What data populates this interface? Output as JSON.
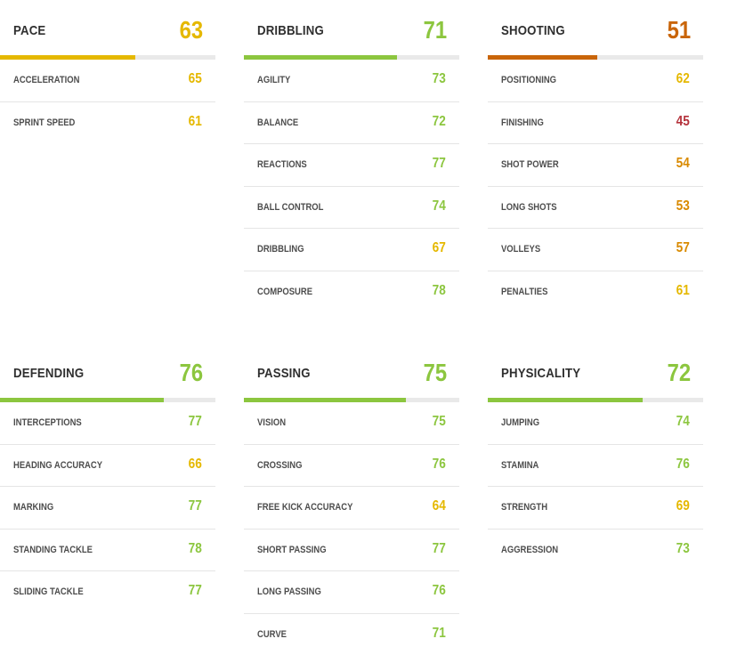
{
  "colors": {
    "green": "#8cc63f",
    "yellow": "#e5b800",
    "orange": "#d98a00",
    "dark_orange": "#c9650a",
    "red": "#b5323c"
  },
  "cards": [
    {
      "title": "PACE",
      "value": "63",
      "rating": 63,
      "color": "#e5b800",
      "stats": [
        {
          "label": "ACCELERATION",
          "value": "65",
          "color": "#e5b800"
        },
        {
          "label": "SPRINT SPEED",
          "value": "61",
          "color": "#e5b800"
        }
      ]
    },
    {
      "title": "DRIBBLING",
      "value": "71",
      "rating": 71,
      "color": "#8cc63f",
      "stats": [
        {
          "label": "AGILITY",
          "value": "73",
          "color": "#8cc63f"
        },
        {
          "label": "BALANCE",
          "value": "72",
          "color": "#8cc63f"
        },
        {
          "label": "REACTIONS",
          "value": "77",
          "color": "#8cc63f"
        },
        {
          "label": "BALL CONTROL",
          "value": "74",
          "color": "#8cc63f"
        },
        {
          "label": "DRIBBLING",
          "value": "67",
          "color": "#e5b800"
        },
        {
          "label": "COMPOSURE",
          "value": "78",
          "color": "#8cc63f"
        }
      ]
    },
    {
      "title": "SHOOTING",
      "value": "51",
      "rating": 51,
      "color": "#c9650a",
      "stats": [
        {
          "label": "POSITIONING",
          "value": "62",
          "color": "#e5b800"
        },
        {
          "label": "FINISHING",
          "value": "45",
          "color": "#b5323c"
        },
        {
          "label": "SHOT POWER",
          "value": "54",
          "color": "#d98a00"
        },
        {
          "label": "LONG SHOTS",
          "value": "53",
          "color": "#d98a00"
        },
        {
          "label": "VOLLEYS",
          "value": "57",
          "color": "#d98a00"
        },
        {
          "label": "PENALTIES",
          "value": "61",
          "color": "#e5b800"
        }
      ]
    },
    {
      "title": "DEFENDING",
      "value": "76",
      "rating": 76,
      "color": "#8cc63f",
      "stats": [
        {
          "label": "INTERCEPTIONS",
          "value": "77",
          "color": "#8cc63f"
        },
        {
          "label": "HEADING ACCURACY",
          "value": "66",
          "color": "#e5b800"
        },
        {
          "label": "MARKING",
          "value": "77",
          "color": "#8cc63f"
        },
        {
          "label": "STANDING TACKLE",
          "value": "78",
          "color": "#8cc63f"
        },
        {
          "label": "SLIDING TACKLE",
          "value": "77",
          "color": "#8cc63f"
        }
      ]
    },
    {
      "title": "PASSING",
      "value": "75",
      "rating": 75,
      "color": "#8cc63f",
      "stats": [
        {
          "label": "VISION",
          "value": "75",
          "color": "#8cc63f"
        },
        {
          "label": "CROSSING",
          "value": "76",
          "color": "#8cc63f"
        },
        {
          "label": "FREE KICK ACCURACY",
          "value": "64",
          "color": "#e5b800"
        },
        {
          "label": "SHORT PASSING",
          "value": "77",
          "color": "#8cc63f"
        },
        {
          "label": "LONG PASSING",
          "value": "76",
          "color": "#8cc63f"
        },
        {
          "label": "CURVE",
          "value": "71",
          "color": "#8cc63f"
        }
      ]
    },
    {
      "title": "PHYSICALITY",
      "value": "72",
      "rating": 72,
      "color": "#8cc63f",
      "stats": [
        {
          "label": "JUMPING",
          "value": "74",
          "color": "#8cc63f"
        },
        {
          "label": "STAMINA",
          "value": "76",
          "color": "#8cc63f"
        },
        {
          "label": "STRENGTH",
          "value": "69",
          "color": "#e5b800"
        },
        {
          "label": "AGGRESSION",
          "value": "73",
          "color": "#8cc63f"
        }
      ]
    }
  ]
}
